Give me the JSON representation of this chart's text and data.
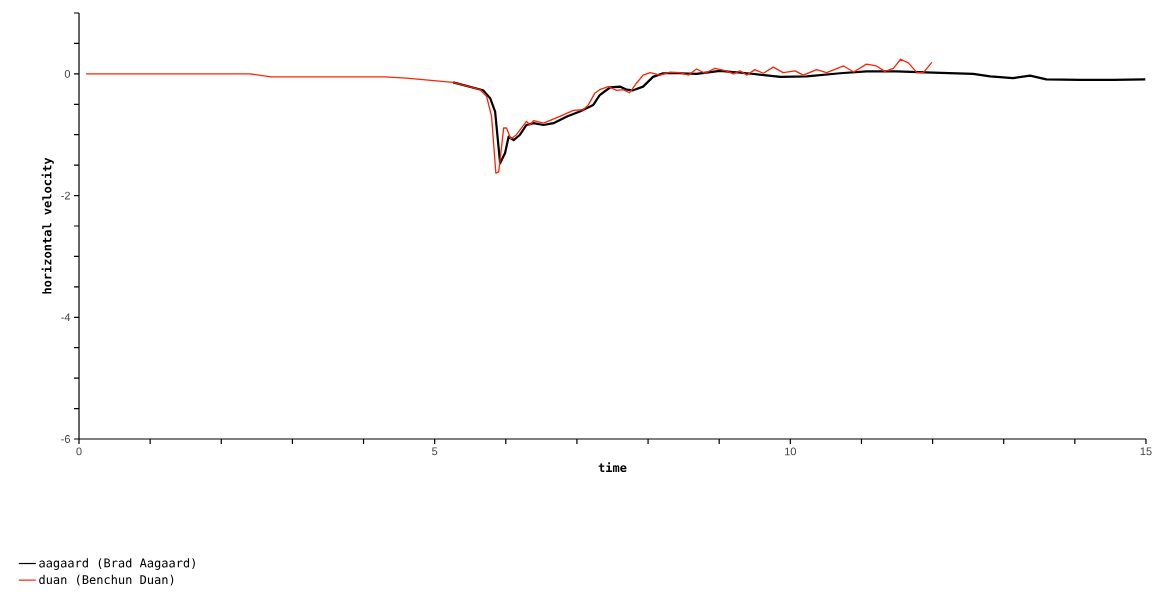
{
  "chart_data": {
    "type": "line",
    "xlabel": "time",
    "ylabel": "horizontal velocity",
    "xlim": [
      0,
      15
    ],
    "ylim": [
      -6,
      1
    ],
    "xticks": [
      0,
      {
        "value": 1,
        "label": null
      },
      {
        "value": 2,
        "label": null
      },
      {
        "value": 3,
        "label": null
      },
      {
        "value": 4,
        "label": null
      },
      5,
      {
        "value": 6,
        "label": null
      },
      {
        "value": 7,
        "label": null
      },
      {
        "value": 8,
        "label": null
      },
      {
        "value": 9,
        "label": null
      },
      10,
      {
        "value": 11,
        "label": null
      },
      {
        "value": 12,
        "label": null
      },
      {
        "value": 13,
        "label": null
      },
      {
        "value": 14,
        "label": null
      },
      15
    ],
    "yticks": [
      -6,
      {
        "value": -5.5,
        "label": null
      },
      {
        "value": -5,
        "label": null
      },
      {
        "value": -4.5,
        "label": null
      },
      -4,
      {
        "value": -3.5,
        "label": null
      },
      {
        "value": -3,
        "label": null
      },
      {
        "value": -2.5,
        "label": null
      },
      -2,
      {
        "value": -1.5,
        "label": null
      },
      {
        "value": -1,
        "label": null
      },
      {
        "value": -0.5,
        "label": null
      },
      0,
      {
        "value": 0.5,
        "label": null
      },
      {
        "value": 1,
        "label": null
      }
    ],
    "grid": false,
    "legend": "bottom left",
    "marker": "none",
    "line_style": "solid",
    "series": [
      {
        "name": "aagaard (Brad Aagaard)",
        "color": "#000000",
        "x": [
          5.26,
          5.68,
          5.78,
          5.85,
          5.92,
          5.99,
          6.04,
          6.11,
          6.2,
          6.29,
          6.39,
          6.53,
          6.67,
          6.86,
          7.04,
          7.23,
          7.32,
          7.47,
          7.61,
          7.7,
          7.79,
          7.93,
          8.07,
          8.21,
          8.45,
          8.68,
          9.01,
          9.39,
          9.86,
          10.23,
          10.7,
          11.07,
          11.49,
          12.01,
          12.57,
          12.81,
          13.13,
          13.37,
          13.6,
          14.07,
          14.54,
          14.99
        ],
        "values": [
          -0.14,
          -0.27,
          -0.4,
          -0.62,
          -1.47,
          -1.3,
          -1.03,
          -1.09,
          -1,
          -0.84,
          -0.81,
          -0.84,
          -0.81,
          -0.7,
          -0.62,
          -0.51,
          -0.35,
          -0.22,
          -0.21,
          -0.26,
          -0.27,
          -0.21,
          -0.05,
          0.01,
          0.01,
          0,
          0.05,
          0.01,
          -0.05,
          -0.04,
          0.01,
          0.04,
          0.04,
          0.02,
          0,
          -0.04,
          -0.07,
          -0.03,
          -0.09,
          -0.1,
          -0.1,
          -0.09
        ]
      },
      {
        "name": "duan (Benchun Duan)",
        "color": "#ff2200",
        "x": [
          0.1,
          2.4,
          2.7,
          4.3,
          4.6,
          5.26,
          5.64,
          5.73,
          5.8,
          5.86,
          5.9,
          5.97,
          6.01,
          6.07,
          6.15,
          6.29,
          6.34,
          6.39,
          6.53,
          6.76,
          6.95,
          7.09,
          7.16,
          7.25,
          7.32,
          7.44,
          7.56,
          7.65,
          7.74,
          7.84,
          7.93,
          8.03,
          8.17,
          8.31,
          8.45,
          8.57,
          8.68,
          8.8,
          8.94,
          9.1,
          9.2,
          9.29,
          9.39,
          9.5,
          9.62,
          9.76,
          9.9,
          10.07,
          10.18,
          10.37,
          10.51,
          10.75,
          10.89,
          11.07,
          11.21,
          11.33,
          11.45,
          11.55,
          11.66,
          11.78,
          11.87,
          11.99
        ],
        "values": [
          0,
          0,
          -0.05,
          -0.05,
          -0.07,
          -0.14,
          -0.26,
          -0.37,
          -0.7,
          -1.63,
          -1.61,
          -0.89,
          -0.89,
          -1.07,
          -1,
          -0.78,
          -0.84,
          -0.77,
          -0.81,
          -0.7,
          -0.6,
          -0.59,
          -0.51,
          -0.32,
          -0.26,
          -0.21,
          -0.27,
          -0.26,
          -0.31,
          -0.15,
          -0.02,
          0.02,
          -0.02,
          0.03,
          0.02,
          -0.02,
          0.08,
          0.01,
          0.09,
          0.05,
          0,
          0.05,
          -0.02,
          0.07,
          0.01,
          0.11,
          0.02,
          0.05,
          -0.02,
          0.07,
          0.02,
          0.13,
          0.03,
          0.16,
          0.13,
          0.04,
          0.09,
          0.24,
          0.18,
          0.02,
          0.02,
          0.19
        ]
      }
    ]
  }
}
